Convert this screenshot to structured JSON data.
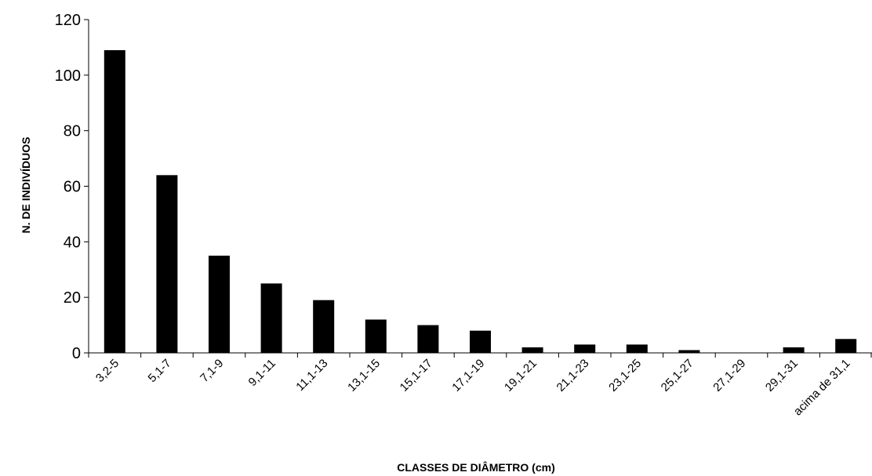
{
  "chart_data": {
    "type": "bar",
    "title": "",
    "xlabel": "CLASSES DE DIÂMETRO (cm)",
    "ylabel": "N. DE INDIVÍDUOS",
    "ylim": [
      0,
      120
    ],
    "yticks": [
      0,
      20,
      40,
      60,
      80,
      100,
      120
    ],
    "grid": false,
    "legend": "none",
    "bar_color": "#000000",
    "categories": [
      "3,2-5",
      "5,1-7",
      "7,1-9",
      "9,1-11",
      "11,1-13",
      "13,1-15",
      "15,1-17",
      "17,1-19",
      "19,1-21",
      "21,1-23",
      "23,1-25",
      "25,1-27",
      "27,1-29",
      "29,1-31",
      "acima de 31,1"
    ],
    "values": [
      109,
      64,
      35,
      25,
      19,
      12,
      10,
      8,
      2,
      3,
      3,
      1,
      0,
      2,
      5
    ]
  }
}
